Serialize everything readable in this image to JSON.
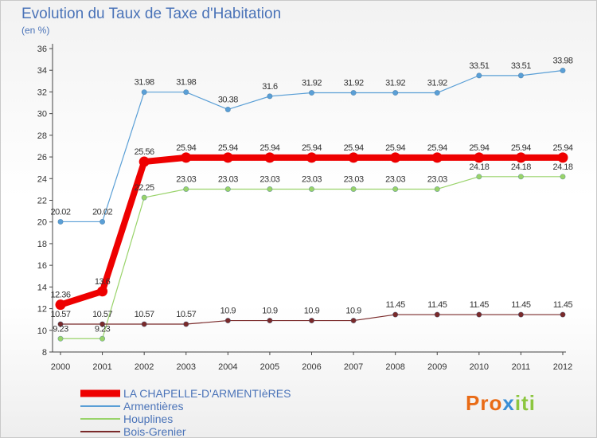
{
  "title": "Evolution du Taux de Taxe d'Habitation",
  "subtitle": "(en %)",
  "logo": {
    "part1": "Pro",
    "part2": "x",
    "part3": "iti"
  },
  "chart_data": {
    "type": "line",
    "x": [
      "2000",
      "2001",
      "2002",
      "2003",
      "2004",
      "2005",
      "2006",
      "2007",
      "2008",
      "2009",
      "2010",
      "2011",
      "2012"
    ],
    "ylim": [
      8,
      36
    ],
    "yticks": [
      8,
      10,
      12,
      14,
      16,
      18,
      20,
      22,
      24,
      26,
      28,
      30,
      32,
      34,
      36
    ],
    "grid": false,
    "legend_position": "bottom-left",
    "series": [
      {
        "name": "LA CHAPELLE-D'ARMENTIèRES",
        "color": "#ee0000",
        "label_color": "#333333",
        "thick": true,
        "values": [
          12.36,
          13.6,
          25.56,
          25.94,
          25.94,
          25.94,
          25.94,
          25.94,
          25.94,
          25.94,
          25.94,
          25.94,
          25.94
        ],
        "labels": [
          "12.36",
          "13.6",
          "25.56",
          "25.94",
          "25.94",
          "25.94",
          "25.94",
          "25.94",
          "25.94",
          "25.94",
          "25.94",
          "25.94",
          "25.94"
        ]
      },
      {
        "name": "Armentières",
        "color": "#5a9fd6",
        "label_color": "#333333",
        "thick": false,
        "values": [
          20.02,
          20.02,
          31.98,
          31.98,
          30.38,
          31.6,
          31.92,
          31.92,
          31.92,
          31.92,
          33.51,
          33.51,
          33.98
        ],
        "labels": [
          "20.02",
          "20.02",
          "31.98",
          "31.98",
          "30.38",
          "31.6",
          "31.92",
          "31.92",
          "31.92",
          "31.92",
          "33.51",
          "33.51",
          "33.98"
        ]
      },
      {
        "name": "Houplines",
        "color": "#99d36a",
        "label_color": "#333333",
        "thick": false,
        "values": [
          9.23,
          9.23,
          22.25,
          23.03,
          23.03,
          23.03,
          23.03,
          23.03,
          23.03,
          23.03,
          24.18,
          24.18,
          24.18
        ],
        "labels": [
          "9.23",
          "9.23",
          "22.25",
          "23.03",
          "23.03",
          "23.03",
          "23.03",
          "23.03",
          "23.03",
          "23.03",
          "24.18",
          "24.18",
          "24.18"
        ]
      },
      {
        "name": "Bois-Grenier",
        "color": "#7a2a2a",
        "label_color": "#333333",
        "thick": false,
        "values": [
          10.57,
          10.57,
          10.57,
          10.57,
          10.9,
          10.9,
          10.9,
          10.9,
          11.45,
          11.45,
          11.45,
          11.45,
          11.45
        ],
        "labels": [
          "10.57",
          "10.57",
          "10.57",
          "10.57",
          "10.9",
          "10.9",
          "10.9",
          "10.9",
          "11.45",
          "11.45",
          "11.45",
          "11.45",
          "11.45"
        ]
      }
    ]
  }
}
